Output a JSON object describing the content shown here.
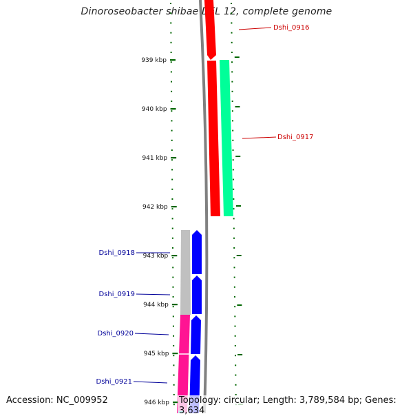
{
  "title": "Dinoroseobacter shibae DFL 12, complete genome",
  "accession_text": "Accession: NC_009952",
  "topology_text": "Topology: circular; Length: 3,789,584 bp; Genes: 3,634",
  "axis": {
    "ticks": [
      {
        "label": "939 kbp",
        "value": 939
      },
      {
        "label": "940 kbp",
        "value": 940
      },
      {
        "label": "941 kbp",
        "value": 941
      },
      {
        "label": "942 kbp",
        "value": 942
      },
      {
        "label": "943 kbp",
        "value": 943
      },
      {
        "label": "944 kbp",
        "value": 944
      },
      {
        "label": "945 kbp",
        "value": 945
      },
      {
        "label": "946 kbp",
        "value": 946
      }
    ]
  },
  "genes": [
    {
      "name": "Dshi_0916",
      "strand": "forward",
      "color": "#ff0000",
      "label_color": "#cc0000"
    },
    {
      "name": "Dshi_0917",
      "strand": "forward",
      "color": "#00ff99",
      "label_color": "#cc0000"
    },
    {
      "name": "Dshi_0918",
      "strand": "reverse",
      "color": "#0000ff",
      "label_color": "#000099"
    },
    {
      "name": "Dshi_0919",
      "strand": "reverse",
      "color": "#0000ff",
      "label_color": "#000099"
    },
    {
      "name": "Dshi_0920",
      "strand": "reverse",
      "color": "#0000ff",
      "label_color": "#000099"
    },
    {
      "name": "Dshi_0921",
      "strand": "reverse",
      "color": "#0000ff",
      "label_color": "#000099"
    }
  ],
  "colors": {
    "backbone": "#808080",
    "tick": "#006600",
    "gc_grey": "#c0c0c0",
    "gc_pink": "#ff1493"
  }
}
